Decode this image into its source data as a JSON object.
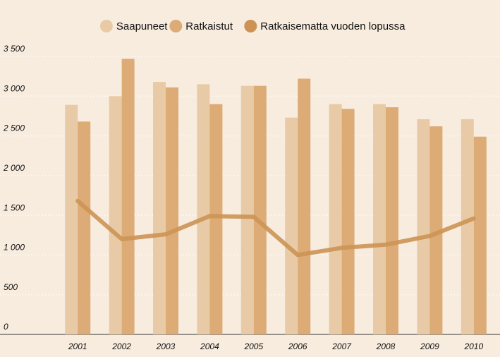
{
  "chart_data": {
    "type": "bar",
    "categories": [
      "2001",
      "2002",
      "2003",
      "2004",
      "2005",
      "2006",
      "2007",
      "2008",
      "2009",
      "2010"
    ],
    "series": [
      {
        "name": "Saapuneet",
        "color": "#e8cba6",
        "values": [
          2890,
          3000,
          3180,
          3150,
          3130,
          2730,
          2900,
          2900,
          2710,
          2710
        ]
      },
      {
        "name": "Ratkaistut",
        "color": "#dcab76",
        "values": [
          2680,
          3470,
          3110,
          2900,
          3130,
          3220,
          2840,
          2860,
          2620,
          2490
        ]
      },
      {
        "name": "Ratkaisematta vuoden lopussa",
        "color": "#cc9354",
        "type": "line",
        "values": [
          1680,
          1200,
          1260,
          1490,
          1480,
          1000,
          1090,
          1130,
          1240,
          1460
        ]
      }
    ],
    "ylim": [
      0,
      3500
    ],
    "yticks": [
      0,
      500,
      {
        "value": 1000,
        "label": "1 000"
      },
      {
        "value": 1500,
        "label": "1 500"
      },
      {
        "value": 2000,
        "label": "2 000"
      },
      {
        "value": 2500,
        "label": "2 500"
      },
      {
        "value": 3000,
        "label": "3 000"
      },
      {
        "value": 3500,
        "label": "3 500"
      }
    ],
    "grid": true
  }
}
